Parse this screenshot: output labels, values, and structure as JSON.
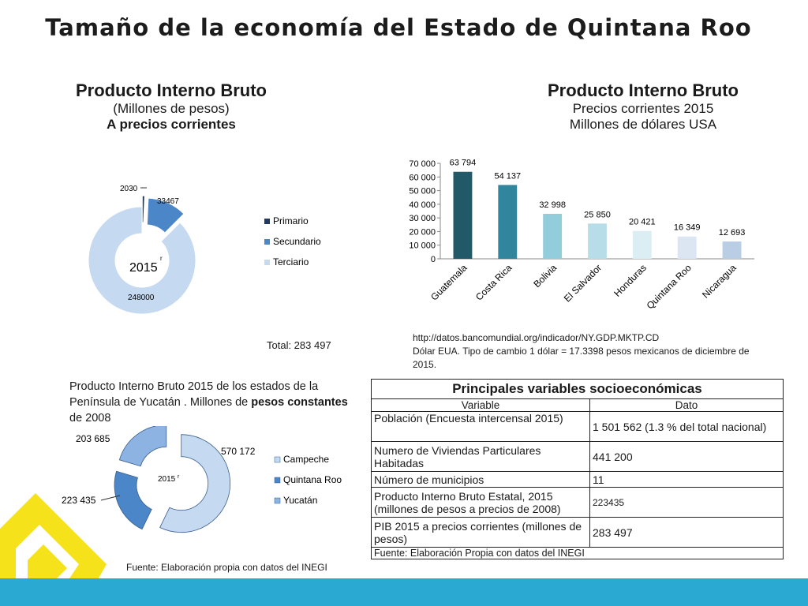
{
  "page": {
    "title": "Tamaño de la economía del Estado de Quintana Roo"
  },
  "left_chart": {
    "title": "Producto Interno Bruto",
    "subtitle1": "(Millones de pesos)",
    "subtitle2": "A precios corrientes",
    "center_label": "2015",
    "center_sup": "r",
    "total_text": "Total:  283 497"
  },
  "right_chart": {
    "title": "Producto Interno Bruto",
    "subtitle1": "Precios corrientes 2015",
    "subtitle2": "Millones de dólares USA",
    "source_line1": "http://datos.bancomundial.org/indicador/NY.GDP.MKTP.CD",
    "source_line2": "Dólar EUA. Tipo de cambio 1 dólar = 17.3398 pesos mexicanos de diciembre de",
    "source_line3": "2015."
  },
  "yucatan_chart": {
    "title_part1": "Producto Interno Bruto 2015 de los estados de la",
    "title_part2": "Península de Yucatán . Millones de ",
    "title_bold": "pesos constantes",
    "title_part3": "de 2008",
    "center_label": "2015",
    "center_sup": "r",
    "source": "Fuente: Elaboración propia con datos del INEGI"
  },
  "table": {
    "title": "Principales variables socioeconómicas",
    "col_variable": "Variable",
    "col_dato": "Dato",
    "rows": [
      {
        "variable": "Población (Encuesta intercensal 2015)",
        "dato": "1 501 562 (1.3 % del total nacional)"
      },
      {
        "variable": "Numero de Viviendas  Particulares Habitadas",
        "dato": "441 200"
      },
      {
        "variable": "Número de municipios",
        "dato": "11"
      },
      {
        "variable": "Producto Interno Bruto Estatal, 2015 (millones de pesos a precios de 2008)",
        "dato": "223435"
      },
      {
        "variable": "PIB 2015 a precios corrientes  (millones de pesos)",
        "dato": "283 497"
      }
    ],
    "footer": "Fuente: Elaboración Propia con datos del INEGI"
  },
  "chart_data": [
    {
      "type": "pie",
      "variant": "doughnut-exploded",
      "categories": [
        "Primario",
        "Secundario",
        "Terciario"
      ],
      "values": [
        2030,
        33467,
        248000
      ],
      "value_labels": [
        "2030",
        "33467",
        "248000"
      ],
      "colors": [
        "#1f3864",
        "#4a86c8",
        "#c5d9f1"
      ],
      "legend": "right"
    },
    {
      "type": "bar",
      "categories": [
        "Guatemala",
        "Costa Rica",
        "Bolivia",
        "El Salvador",
        "Honduras",
        "Quintana Roo",
        "Nicaragua"
      ],
      "values": [
        63794,
        54137,
        32998,
        25850,
        20421,
        16349,
        12693
      ],
      "value_labels": [
        "63 794",
        "54 137",
        "32 998",
        "25 850",
        "20 421",
        "16 349",
        "12 693"
      ],
      "colors": [
        "#215968",
        "#31859c",
        "#92cddc",
        "#b7dee8",
        "#daeef3",
        "#dce6f2",
        "#b9cde5"
      ],
      "ylim": [
        0,
        70000
      ],
      "yticks": [
        0,
        10000,
        20000,
        30000,
        40000,
        50000,
        60000,
        70000
      ],
      "ytick_labels": [
        "0",
        "10 000",
        "20 000",
        "30 000",
        "40 000",
        "50 000",
        "60 000",
        "70 000"
      ],
      "grid": false
    },
    {
      "type": "pie",
      "variant": "doughnut-exploded",
      "categories": [
        "Campeche",
        "Quintana Roo",
        "Yucatán"
      ],
      "values": [
        570172,
        223435,
        203685
      ],
      "value_labels": [
        "570 172",
        "223 435",
        "203 685"
      ],
      "colors": [
        "#c5d9f1",
        "#4a86c8",
        "#8db3e2"
      ],
      "legend": "right"
    }
  ]
}
